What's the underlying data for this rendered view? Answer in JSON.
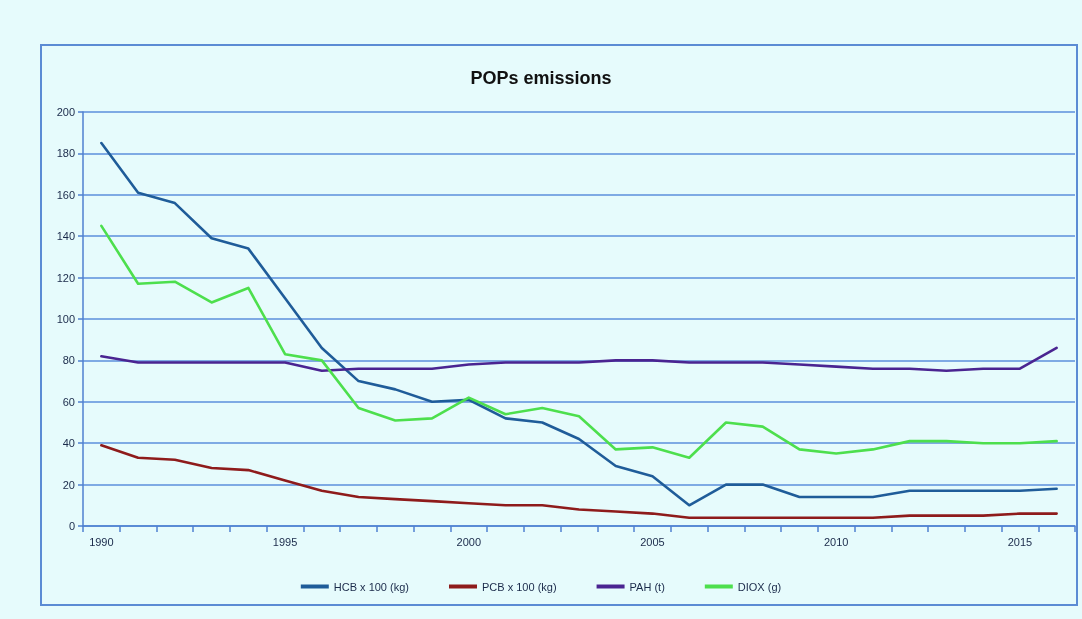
{
  "chart_data": {
    "type": "line",
    "title": "POPs emissions",
    "categories": [
      "1990",
      null,
      null,
      null,
      null,
      "1995",
      null,
      null,
      null,
      null,
      "2000",
      null,
      null,
      null,
      null,
      "2005",
      null,
      null,
      null,
      null,
      "2010",
      null,
      null,
      null,
      null,
      "2015",
      null
    ],
    "series": [
      {
        "name": "HCB x 100 (kg)",
        "color": "#1f5c99",
        "values": [
          185,
          161,
          156,
          139,
          134,
          110,
          86,
          70,
          66,
          60,
          61,
          52,
          50,
          42,
          29,
          24,
          10,
          20,
          20,
          14,
          14,
          14,
          17,
          17,
          17,
          17,
          18
        ]
      },
      {
        "name": "PCB x 100 (kg)",
        "color": "#8e1b1b",
        "values": [
          39,
          33,
          32,
          28,
          27,
          22,
          17,
          14,
          13,
          12,
          11,
          10,
          10,
          8,
          7,
          6,
          4,
          4,
          4,
          4,
          4,
          4,
          5,
          5,
          5,
          6,
          6
        ]
      },
      {
        "name": "PAH (t)",
        "color": "#4a2491",
        "values": [
          82,
          79,
          79,
          79,
          79,
          79,
          75,
          76,
          76,
          76,
          78,
          79,
          79,
          79,
          80,
          80,
          79,
          79,
          79,
          78,
          77,
          76,
          76,
          75,
          76,
          76,
          86
        ]
      },
      {
        "name": "DIOX (g)",
        "color": "#4ddf4d",
        "values": [
          145,
          117,
          118,
          108,
          115,
          83,
          80,
          57,
          51,
          52,
          62,
          54,
          57,
          53,
          37,
          38,
          33,
          50,
          48,
          37,
          35,
          37,
          41,
          41,
          40,
          40,
          41
        ]
      }
    ],
    "ylim": [
      0,
      200
    ],
    "yticks": [
      0,
      20,
      40,
      60,
      80,
      100,
      120,
      140,
      160,
      180,
      200
    ],
    "grid": "y",
    "legend": "bottom",
    "marker": "none",
    "line_style": "solid"
  }
}
